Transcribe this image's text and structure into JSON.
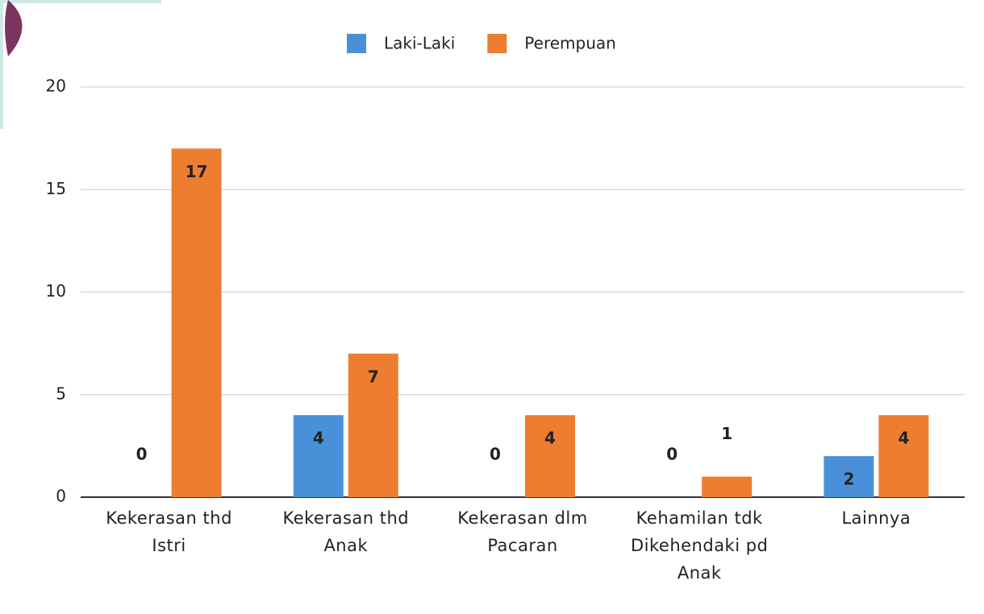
{
  "chart_data": {
    "type": "bar",
    "categories": [
      "Kekerasan thd Istri",
      "Kekerasan thd Anak",
      "Kekerasan dlm Pacaran",
      "Kehamilan tdk Dikehendaki pd Anak",
      "Lainnya"
    ],
    "series": [
      {
        "name": "Laki-Laki",
        "color": "#4a90d9",
        "values": [
          0,
          4,
          0,
          0,
          2
        ]
      },
      {
        "name": "Perempuan",
        "color": "#ed7d31",
        "values": [
          17,
          7,
          4,
          1,
          4
        ]
      }
    ],
    "ylim": [
      0,
      20
    ],
    "yticks": [
      0,
      5,
      10,
      15,
      20
    ],
    "grid": true,
    "legend": "top"
  }
}
